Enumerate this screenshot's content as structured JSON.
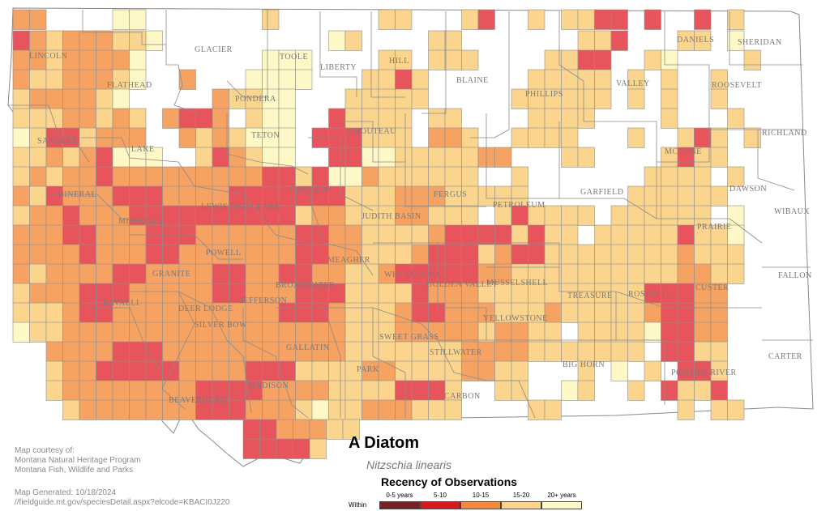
{
  "map": {
    "title": "A Diatom",
    "scientific_name": "Nitzschia linearis",
    "credit_lines": [
      "Map courtesy of:",
      "Montana Natural Heritage Program",
      "Montana Fish, Wildlife and Parks"
    ],
    "generated": "Map Generated: 10/18/2024",
    "url": "//fieldguide.mt.gov/speciesDetail.aspx?elcode=KBACI0J220",
    "colors": {
      "c1": "#e8545c",
      "c2": "#f5a262",
      "c3": "#fbd58d",
      "c4": "#fef7c6",
      "border": "#8a8a8a"
    },
    "legend": {
      "title": "Recency of Observations",
      "within_label": "Within",
      "items": [
        {
          "label": "0-5 years",
          "color": "#7b1f28"
        },
        {
          "label": "5-10",
          "color": "#d7191c"
        },
        {
          "label": "10-15",
          "color": "#f8883a"
        },
        {
          "label": "15-20",
          "color": "#fbd58d"
        },
        {
          "label": "20+ years",
          "color": "#fef9c8"
        }
      ]
    },
    "counties": [
      "LINCOLN",
      "FLATHEAD",
      "GLACIER",
      "TOOLE",
      "LIBERTY",
      "HILL",
      "BLAINE",
      "PHILLIPS",
      "VALLEY",
      "DANIELS",
      "SHERIDAN",
      "ROOSEVELT",
      "PONDERA",
      "TETON",
      "SANDERS",
      "LAKE",
      "CHOUTEAU",
      "RICHLAND",
      "MCCONE",
      "MINERAL",
      "CASCADE",
      "LEWIS AND CLARK",
      "FERGUS",
      "PETROLEUM",
      "GARFIELD",
      "DAWSON",
      "MISSOULA",
      "JUDITH BASIN",
      "PRAIRIE",
      "WIBAUX",
      "POWELL",
      "MEAGHER",
      "MUSSELSHELL",
      "GRANITE",
      "BROADWATER",
      "WHEATLAND",
      "GOLDEN VALLEY",
      "FALLON",
      "RAVALLI",
      "DEER LODGE",
      "JEFFERSON",
      "TREASURE",
      "ROSEBUD",
      "CUSTER",
      "SILVER BOW",
      "YELLOWSTONE",
      "SWEET GRASS",
      "GALLATIN",
      "STILLWATER",
      "PARK",
      "BIG HORN",
      "CARTER",
      "POWDER RIVER",
      "MADISON",
      "BEAVERHEAD",
      "CARBON"
    ]
  }
}
